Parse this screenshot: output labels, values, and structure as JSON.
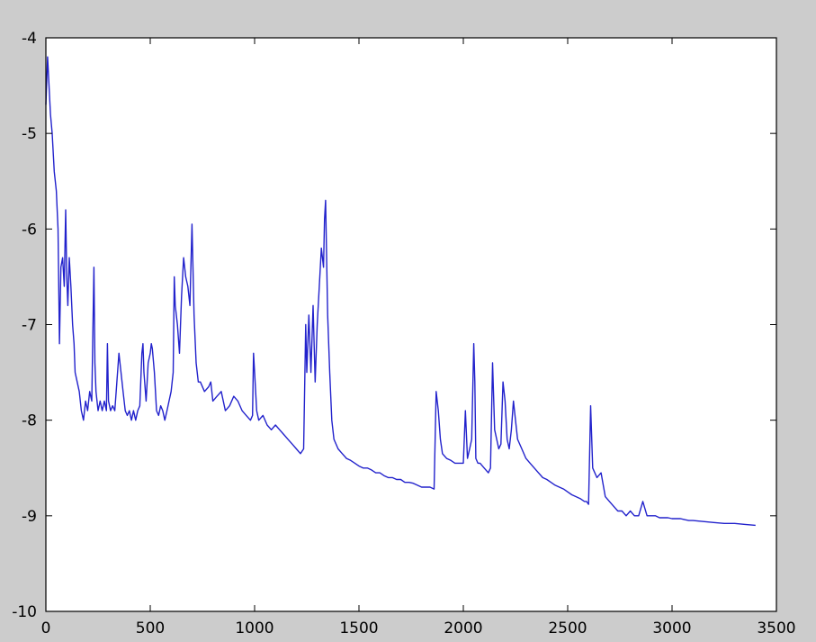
{
  "chart_data": {
    "type": "line",
    "title": "",
    "xlabel": "",
    "ylabel": "",
    "xlim": [
      0,
      3500
    ],
    "ylim": [
      -10,
      -4
    ],
    "xticks": [
      0,
      500,
      1000,
      1500,
      2000,
      2500,
      3000,
      3500
    ],
    "yticks": [
      -4,
      -5,
      -6,
      -7,
      -8,
      -9,
      -10
    ],
    "xtick_labels": [
      "0",
      "500",
      "1000",
      "1500",
      "2000",
      "2500",
      "3000",
      "3500"
    ],
    "ytick_labels": [
      "-4",
      "-5",
      "-6",
      "-7",
      "-8",
      "-9",
      "-10"
    ],
    "grid": false,
    "colors": {
      "series": "#2222cc",
      "axes": "#000000",
      "figure_bg": "#cccccc",
      "plot_bg": "#ffffff"
    },
    "series": [
      {
        "x": [
          0,
          8,
          15,
          22,
          30,
          40,
          50,
          58,
          65,
          72,
          80,
          88,
          95,
          100,
          105,
          112,
          120,
          128,
          135,
          140,
          150,
          160,
          170,
          180,
          190,
          200,
          210,
          220,
          230,
          235,
          240,
          250,
          260,
          270,
          280,
          290,
          295,
          300,
          310,
          320,
          330,
          340,
          350,
          360,
          370,
          380,
          390,
          400,
          410,
          420,
          430,
          440,
          450,
          460,
          465,
          470,
          480,
          490,
          500,
          505,
          510,
          520,
          530,
          540,
          550,
          560,
          570,
          580,
          590,
          600,
          610,
          615,
          620,
          630,
          640,
          650,
          660,
          670,
          680,
          690,
          700,
          710,
          720,
          730,
          740,
          760,
          780,
          790,
          800,
          820,
          840,
          860,
          880,
          900,
          920,
          940,
          960,
          980,
          990,
          995,
          1000,
          1010,
          1020,
          1040,
          1060,
          1080,
          1100,
          1120,
          1140,
          1160,
          1180,
          1200,
          1220,
          1235,
          1245,
          1250,
          1260,
          1270,
          1280,
          1290,
          1300,
          1310,
          1320,
          1330,
          1335,
          1340,
          1350,
          1360,
          1370,
          1380,
          1400,
          1420,
          1440,
          1460,
          1480,
          1500,
          1520,
          1540,
          1560,
          1580,
          1600,
          1620,
          1640,
          1660,
          1680,
          1700,
          1720,
          1740,
          1760,
          1780,
          1800,
          1820,
          1840,
          1860,
          1870,
          1880,
          1890,
          1900,
          1920,
          1940,
          1960,
          1980,
          2000,
          2010,
          2020,
          2030,
          2040,
          2050,
          2055,
          2060,
          2070,
          2080,
          2100,
          2120,
          2130,
          2140,
          2150,
          2160,
          2170,
          2180,
          2190,
          2200,
          2210,
          2220,
          2230,
          2240,
          2260,
          2280,
          2300,
          2320,
          2340,
          2360,
          2380,
          2400,
          2420,
          2440,
          2460,
          2480,
          2500,
          2520,
          2540,
          2560,
          2580,
          2590,
          2600,
          2610,
          2620,
          2640,
          2660,
          2680,
          2700,
          2720,
          2740,
          2760,
          2780,
          2800,
          2820,
          2840,
          2860,
          2880,
          2900,
          2920,
          2940,
          2960,
          2980,
          3000,
          3020,
          3040,
          3060,
          3080,
          3100,
          3150,
          3200,
          3250,
          3300,
          3350,
          3400
        ],
        "y": [
          -4.7,
          -4.2,
          -4.5,
          -4.8,
          -5.0,
          -5.4,
          -5.6,
          -6.0,
          -7.2,
          -6.4,
          -6.3,
          -6.6,
          -5.8,
          -6.5,
          -6.8,
          -6.3,
          -6.6,
          -7.0,
          -7.2,
          -7.5,
          -7.6,
          -7.7,
          -7.9,
          -8.0,
          -7.8,
          -7.9,
          -7.7,
          -7.8,
          -6.4,
          -7.4,
          -7.7,
          -7.9,
          -7.8,
          -7.9,
          -7.8,
          -7.9,
          -7.2,
          -7.8,
          -7.9,
          -7.85,
          -7.9,
          -7.6,
          -7.3,
          -7.5,
          -7.7,
          -7.9,
          -7.95,
          -7.9,
          -8.0,
          -7.9,
          -8.0,
          -7.9,
          -7.85,
          -7.3,
          -7.2,
          -7.5,
          -7.8,
          -7.4,
          -7.3,
          -7.2,
          -7.25,
          -7.5,
          -7.9,
          -7.95,
          -7.85,
          -7.9,
          -8.0,
          -7.9,
          -7.8,
          -7.7,
          -7.5,
          -6.5,
          -6.8,
          -7.0,
          -7.3,
          -6.7,
          -6.3,
          -6.5,
          -6.6,
          -6.8,
          -5.95,
          -6.9,
          -7.4,
          -7.6,
          -7.6,
          -7.7,
          -7.65,
          -7.6,
          -7.8,
          -7.75,
          -7.7,
          -7.9,
          -7.85,
          -7.75,
          -7.8,
          -7.9,
          -7.95,
          -8.0,
          -7.95,
          -7.3,
          -7.5,
          -7.9,
          -8.0,
          -7.95,
          -8.05,
          -8.1,
          -8.05,
          -8.1,
          -8.15,
          -8.2,
          -8.25,
          -8.3,
          -8.35,
          -8.3,
          -7.0,
          -7.5,
          -6.9,
          -7.5,
          -6.8,
          -7.6,
          -7.0,
          -6.6,
          -6.2,
          -6.4,
          -5.9,
          -5.7,
          -6.9,
          -7.5,
          -8.0,
          -8.2,
          -8.3,
          -8.35,
          -8.4,
          -8.42,
          -8.45,
          -8.48,
          -8.5,
          -8.5,
          -8.52,
          -8.55,
          -8.55,
          -8.58,
          -8.6,
          -8.6,
          -8.62,
          -8.62,
          -8.65,
          -8.65,
          -8.66,
          -8.68,
          -8.7,
          -8.7,
          -8.7,
          -8.72,
          -7.7,
          -7.9,
          -8.2,
          -8.35,
          -8.4,
          -8.42,
          -8.45,
          -8.45,
          -8.45,
          -7.9,
          -8.4,
          -8.3,
          -8.2,
          -7.2,
          -7.6,
          -8.4,
          -8.45,
          -8.45,
          -8.5,
          -8.55,
          -8.5,
          -7.4,
          -8.1,
          -8.2,
          -8.3,
          -8.25,
          -7.6,
          -7.8,
          -8.2,
          -8.3,
          -8.1,
          -7.8,
          -8.2,
          -8.3,
          -8.4,
          -8.45,
          -8.5,
          -8.55,
          -8.6,
          -8.62,
          -8.65,
          -8.68,
          -8.7,
          -8.72,
          -8.75,
          -8.78,
          -8.8,
          -8.82,
          -8.85,
          -8.85,
          -8.88,
          -7.85,
          -8.5,
          -8.6,
          -8.55,
          -8.8,
          -8.85,
          -8.9,
          -8.95,
          -8.95,
          -9.0,
          -8.95,
          -9.0,
          -9.0,
          -8.85,
          -9.0,
          -9.0,
          -9.0,
          -9.02,
          -9.02,
          -9.02,
          -9.03,
          -9.03,
          -9.03,
          -9.04,
          -9.05,
          -9.05,
          -9.06,
          -9.07,
          -9.08,
          -9.08,
          -9.09,
          -9.1
        ]
      }
    ]
  }
}
